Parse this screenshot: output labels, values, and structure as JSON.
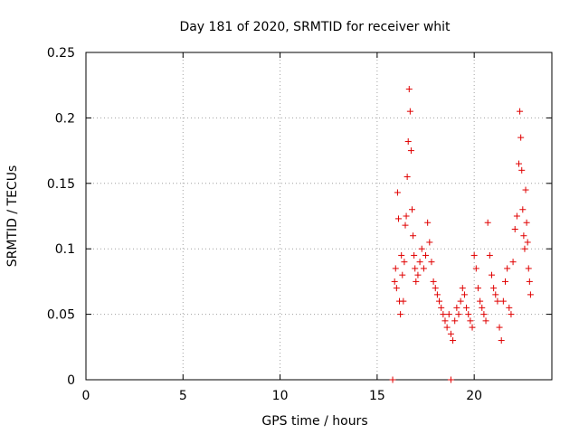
{
  "chart_data": {
    "type": "scatter",
    "title": "Day 181 of 2020, SRMTID for receiver whit",
    "xlabel": "GPS time / hours",
    "ylabel": "SRMTID / TECUs",
    "xlim": [
      0,
      24
    ],
    "ylim": [
      0,
      0.25
    ],
    "x_ticks": [
      0,
      5,
      10,
      15,
      20
    ],
    "x_tick_labels": [
      "0",
      "5",
      "10",
      "15",
      "20"
    ],
    "y_ticks": [
      0,
      0.05,
      0.1,
      0.15,
      0.2,
      0.25
    ],
    "y_tick_labels": [
      "0",
      "0.05",
      "0.1",
      "0.15",
      "0.2",
      "0.25"
    ],
    "grid": true,
    "marker": "plus",
    "marker_color": "#e00000",
    "series": [
      {
        "name": "SRMTID",
        "points": [
          [
            15.8,
            0.0
          ],
          [
            18.8,
            0.0
          ],
          [
            15.9,
            0.075
          ],
          [
            15.95,
            0.085
          ],
          [
            16.0,
            0.07
          ],
          [
            16.05,
            0.143
          ],
          [
            16.1,
            0.123
          ],
          [
            16.15,
            0.06
          ],
          [
            16.2,
            0.05
          ],
          [
            16.25,
            0.095
          ],
          [
            16.3,
            0.08
          ],
          [
            16.35,
            0.06
          ],
          [
            16.4,
            0.09
          ],
          [
            16.45,
            0.118
          ],
          [
            16.5,
            0.125
          ],
          [
            16.55,
            0.155
          ],
          [
            16.6,
            0.182
          ],
          [
            16.65,
            0.222
          ],
          [
            16.7,
            0.205
          ],
          [
            16.75,
            0.175
          ],
          [
            16.8,
            0.13
          ],
          [
            16.85,
            0.11
          ],
          [
            16.9,
            0.095
          ],
          [
            16.95,
            0.085
          ],
          [
            17.0,
            0.075
          ],
          [
            17.1,
            0.08
          ],
          [
            17.2,
            0.09
          ],
          [
            17.3,
            0.1
          ],
          [
            17.4,
            0.085
          ],
          [
            17.5,
            0.095
          ],
          [
            17.6,
            0.12
          ],
          [
            17.7,
            0.105
          ],
          [
            17.8,
            0.09
          ],
          [
            17.9,
            0.075
          ],
          [
            18.0,
            0.07
          ],
          [
            18.1,
            0.065
          ],
          [
            18.2,
            0.06
          ],
          [
            18.3,
            0.055
          ],
          [
            18.4,
            0.05
          ],
          [
            18.5,
            0.045
          ],
          [
            18.6,
            0.04
          ],
          [
            18.7,
            0.05
          ],
          [
            18.8,
            0.035
          ],
          [
            18.9,
            0.03
          ],
          [
            19.0,
            0.045
          ],
          [
            19.1,
            0.055
          ],
          [
            19.2,
            0.05
          ],
          [
            19.3,
            0.06
          ],
          [
            19.4,
            0.07
          ],
          [
            19.5,
            0.065
          ],
          [
            19.6,
            0.055
          ],
          [
            19.7,
            0.05
          ],
          [
            19.8,
            0.045
          ],
          [
            19.9,
            0.04
          ],
          [
            20.0,
            0.095
          ],
          [
            20.1,
            0.085
          ],
          [
            20.2,
            0.07
          ],
          [
            20.3,
            0.06
          ],
          [
            20.4,
            0.055
          ],
          [
            20.5,
            0.05
          ],
          [
            20.6,
            0.045
          ],
          [
            20.7,
            0.12
          ],
          [
            20.8,
            0.095
          ],
          [
            20.9,
            0.08
          ],
          [
            21.0,
            0.07
          ],
          [
            21.1,
            0.065
          ],
          [
            21.2,
            0.06
          ],
          [
            21.3,
            0.04
          ],
          [
            21.4,
            0.03
          ],
          [
            21.5,
            0.06
          ],
          [
            21.6,
            0.075
          ],
          [
            21.7,
            0.085
          ],
          [
            21.8,
            0.055
          ],
          [
            21.9,
            0.05
          ],
          [
            22.0,
            0.09
          ],
          [
            22.1,
            0.115
          ],
          [
            22.2,
            0.125
          ],
          [
            22.3,
            0.165
          ],
          [
            22.35,
            0.205
          ],
          [
            22.4,
            0.185
          ],
          [
            22.45,
            0.16
          ],
          [
            22.5,
            0.13
          ],
          [
            22.55,
            0.11
          ],
          [
            22.6,
            0.1
          ],
          [
            22.65,
            0.145
          ],
          [
            22.7,
            0.12
          ],
          [
            22.75,
            0.105
          ],
          [
            22.8,
            0.085
          ],
          [
            22.85,
            0.075
          ],
          [
            22.9,
            0.065
          ]
        ]
      }
    ]
  }
}
